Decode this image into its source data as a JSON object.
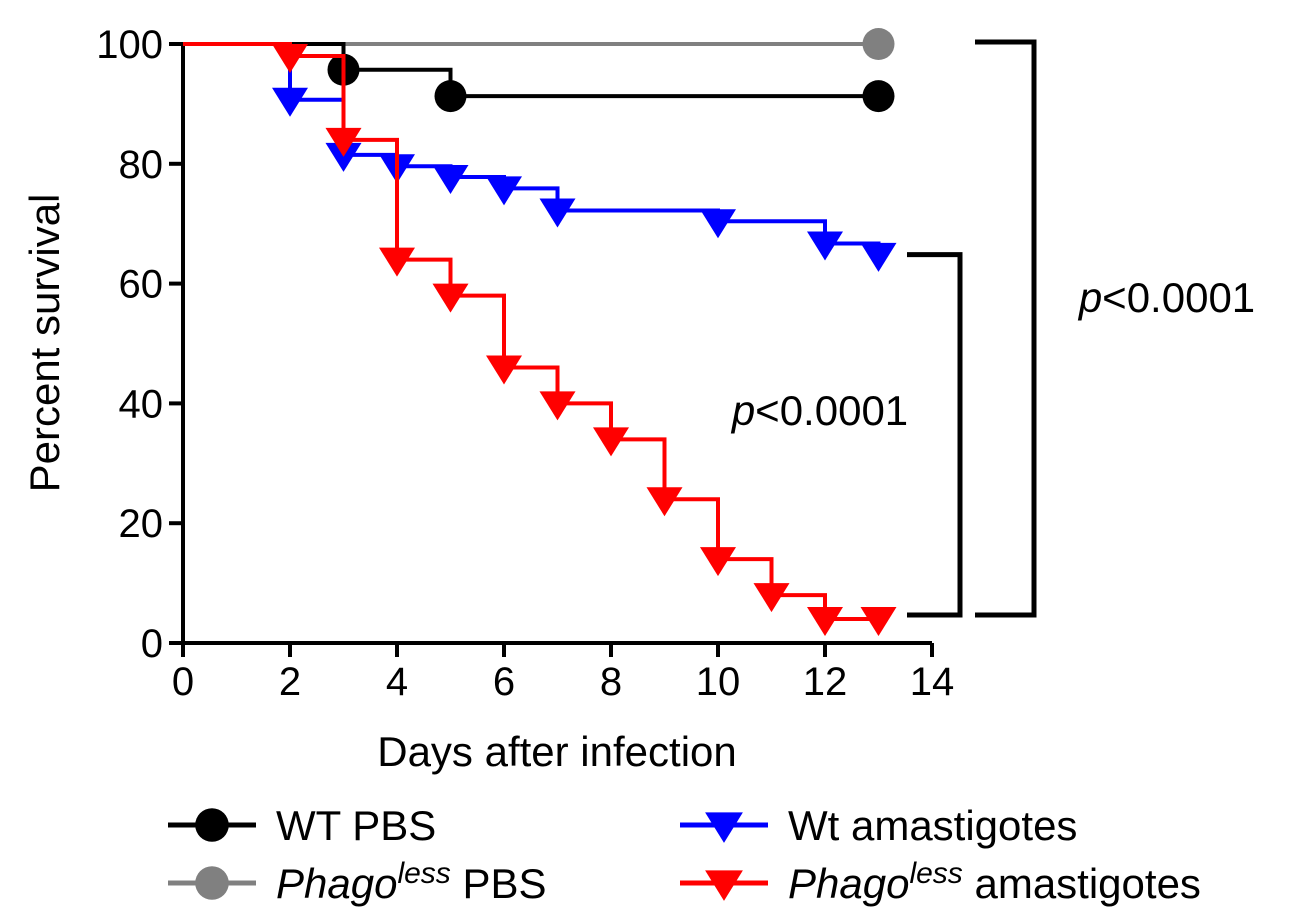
{
  "chart_data": {
    "type": "line",
    "subtype": "kaplan-meier-survival",
    "title": "",
    "xlabel": "Days after infection",
    "ylabel": "Percent survival",
    "xlim": [
      0,
      14
    ],
    "ylim": [
      0,
      100
    ],
    "xticks": [
      0,
      2,
      4,
      6,
      8,
      10,
      12,
      14
    ],
    "yticks": [
      0,
      20,
      40,
      60,
      80,
      100
    ],
    "grid": false,
    "legend_placement": "bottom",
    "series": [
      {
        "name": "WT PBS",
        "color": "#000000",
        "marker": "circle",
        "steps": [
          [
            0,
            100
          ],
          [
            3,
            95.7
          ],
          [
            5,
            91.3
          ],
          [
            13,
            91.3
          ]
        ],
        "markers": [
          [
            3,
            95.7
          ],
          [
            5,
            91.3
          ],
          [
            13,
            91.3
          ]
        ]
      },
      {
        "name": "PBS",
        "name_prefix_italic": "Phago",
        "name_superscript": "less",
        "color": "#808080",
        "marker": "circle",
        "steps": [
          [
            0,
            100
          ],
          [
            13,
            100
          ]
        ],
        "markers": [
          [
            13,
            100
          ]
        ]
      },
      {
        "name": "Wt amastigotes",
        "color": "#0000ff",
        "marker": "triangle-down",
        "steps": [
          [
            0,
            100
          ],
          [
            2,
            90.7
          ],
          [
            3,
            81.5
          ],
          [
            4,
            79.6
          ],
          [
            5,
            77.8
          ],
          [
            6,
            75.9
          ],
          [
            7,
            72.2
          ],
          [
            10,
            70.4
          ],
          [
            12,
            66.7
          ],
          [
            13,
            64.8
          ]
        ],
        "markers": [
          [
            2,
            90.7
          ],
          [
            3,
            81.5
          ],
          [
            4,
            79.6
          ],
          [
            5,
            77.8
          ],
          [
            6,
            75.9
          ],
          [
            7,
            72.2
          ],
          [
            10,
            70.4
          ],
          [
            12,
            66.7
          ],
          [
            13,
            64.8
          ]
        ]
      },
      {
        "name": "amastigotes",
        "name_prefix_italic": "Phago",
        "name_superscript": "less",
        "color": "#ff0000",
        "marker": "triangle-down",
        "steps": [
          [
            0,
            100
          ],
          [
            2,
            98
          ],
          [
            3,
            84
          ],
          [
            4,
            64
          ],
          [
            5,
            58
          ],
          [
            6,
            46
          ],
          [
            7,
            40
          ],
          [
            8,
            34
          ],
          [
            9,
            24
          ],
          [
            10,
            14
          ],
          [
            11,
            8
          ],
          [
            12,
            4
          ],
          [
            13,
            4
          ]
        ],
        "markers": [
          [
            2,
            98
          ],
          [
            3,
            84
          ],
          [
            4,
            64
          ],
          [
            5,
            58
          ],
          [
            6,
            46
          ],
          [
            7,
            40
          ],
          [
            8,
            34
          ],
          [
            9,
            24
          ],
          [
            10,
            14
          ],
          [
            11,
            8
          ],
          [
            12,
            4
          ],
          [
            13,
            4
          ]
        ]
      }
    ],
    "annotations": [
      {
        "italic": "p",
        "text": "<0.0001",
        "compares": [
          "Wt amastigotes",
          "Phagoless amastigotes"
        ],
        "y_range": [
          5,
          65
        ]
      },
      {
        "italic": "p",
        "text": "<0.0001",
        "compares": [
          "Phagoless PBS",
          "Phagoless amastigotes"
        ],
        "y_range": [
          5,
          100
        ]
      }
    ]
  }
}
